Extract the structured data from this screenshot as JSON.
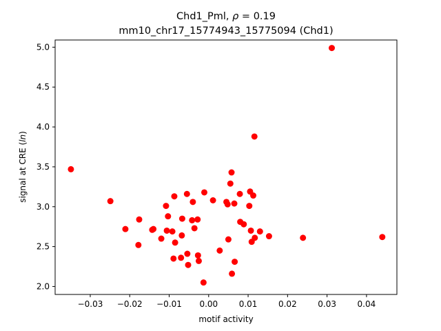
{
  "chart_data": {
    "type": "scatter",
    "title_line1_prefix": "Chd1_Pml, ",
    "title_rho_symbol": "ρ",
    "title_rho_value": " = 0.19",
    "title_line2": "mm10_chr17_15774943_15775094 (Chd1)",
    "xlabel": "motif activity",
    "ylabel_prefix": "signal at CRE (",
    "ylabel_italic": "ln",
    "ylabel_suffix": ")",
    "xlim": [
      -0.0389,
      0.0477
    ],
    "ylim": [
      1.9,
      5.09
    ],
    "x_ticks": [
      -0.03,
      -0.02,
      -0.01,
      0.0,
      0.01,
      0.02,
      0.03,
      0.04
    ],
    "x_tick_labels": [
      "−0.03",
      "−0.02",
      "−0.01",
      "0.00",
      "0.01",
      "0.02",
      "0.03",
      "0.04"
    ],
    "y_ticks": [
      2.0,
      2.5,
      3.0,
      3.5,
      4.0,
      4.5,
      5.0
    ],
    "y_tick_labels": [
      "2.0",
      "2.5",
      "3.0",
      "3.5",
      "4.0",
      "4.5",
      "5.0"
    ],
    "marker_color": "#ff0000",
    "points": [
      {
        "x": -0.0349,
        "y": 3.47
      },
      {
        "x": -0.0249,
        "y": 3.07
      },
      {
        "x": -0.0211,
        "y": 2.72
      },
      {
        "x": -0.0178,
        "y": 2.52
      },
      {
        "x": -0.0176,
        "y": 2.84
      },
      {
        "x": -0.0143,
        "y": 2.71
      },
      {
        "x": -0.014,
        "y": 2.72
      },
      {
        "x": -0.012,
        "y": 2.6
      },
      {
        "x": -0.0108,
        "y": 3.01
      },
      {
        "x": -0.0106,
        "y": 2.7
      },
      {
        "x": -0.0103,
        "y": 2.88
      },
      {
        "x": -0.0092,
        "y": 2.69
      },
      {
        "x": -0.0089,
        "y": 2.35
      },
      {
        "x": -0.0087,
        "y": 3.13
      },
      {
        "x": -0.0085,
        "y": 2.55
      },
      {
        "x": -0.007,
        "y": 2.36
      },
      {
        "x": -0.0068,
        "y": 2.64
      },
      {
        "x": -0.0067,
        "y": 2.85
      },
      {
        "x": -0.0055,
        "y": 3.16
      },
      {
        "x": -0.0054,
        "y": 2.41
      },
      {
        "x": -0.0052,
        "y": 2.27
      },
      {
        "x": -0.0042,
        "y": 2.83
      },
      {
        "x": -0.004,
        "y": 3.06
      },
      {
        "x": -0.0036,
        "y": 2.73
      },
      {
        "x": -0.0028,
        "y": 2.84
      },
      {
        "x": -0.0027,
        "y": 2.39
      },
      {
        "x": -0.0025,
        "y": 2.32
      },
      {
        "x": -0.0013,
        "y": 2.05
      },
      {
        "x": -0.0011,
        "y": 3.18
      },
      {
        "x": 0.0011,
        "y": 3.08
      },
      {
        "x": 0.0028,
        "y": 2.45
      },
      {
        "x": 0.0045,
        "y": 3.06
      },
      {
        "x": 0.0048,
        "y": 3.03
      },
      {
        "x": 0.005,
        "y": 2.59
      },
      {
        "x": 0.0055,
        "y": 3.29
      },
      {
        "x": 0.0058,
        "y": 3.43
      },
      {
        "x": 0.0059,
        "y": 2.16
      },
      {
        "x": 0.0065,
        "y": 3.04
      },
      {
        "x": 0.0066,
        "y": 2.31
      },
      {
        "x": 0.0079,
        "y": 3.16
      },
      {
        "x": 0.008,
        "y": 2.81
      },
      {
        "x": 0.0089,
        "y": 2.78
      },
      {
        "x": 0.0103,
        "y": 3.01
      },
      {
        "x": 0.0105,
        "y": 3.19
      },
      {
        "x": 0.0107,
        "y": 2.7
      },
      {
        "x": 0.0109,
        "y": 2.56
      },
      {
        "x": 0.0113,
        "y": 3.14
      },
      {
        "x": 0.0116,
        "y": 3.88
      },
      {
        "x": 0.0117,
        "y": 2.61
      },
      {
        "x": 0.013,
        "y": 2.69
      },
      {
        "x": 0.0153,
        "y": 2.63
      },
      {
        "x": 0.0239,
        "y": 2.61
      },
      {
        "x": 0.0312,
        "y": 4.99
      },
      {
        "x": 0.044,
        "y": 2.62
      }
    ]
  }
}
